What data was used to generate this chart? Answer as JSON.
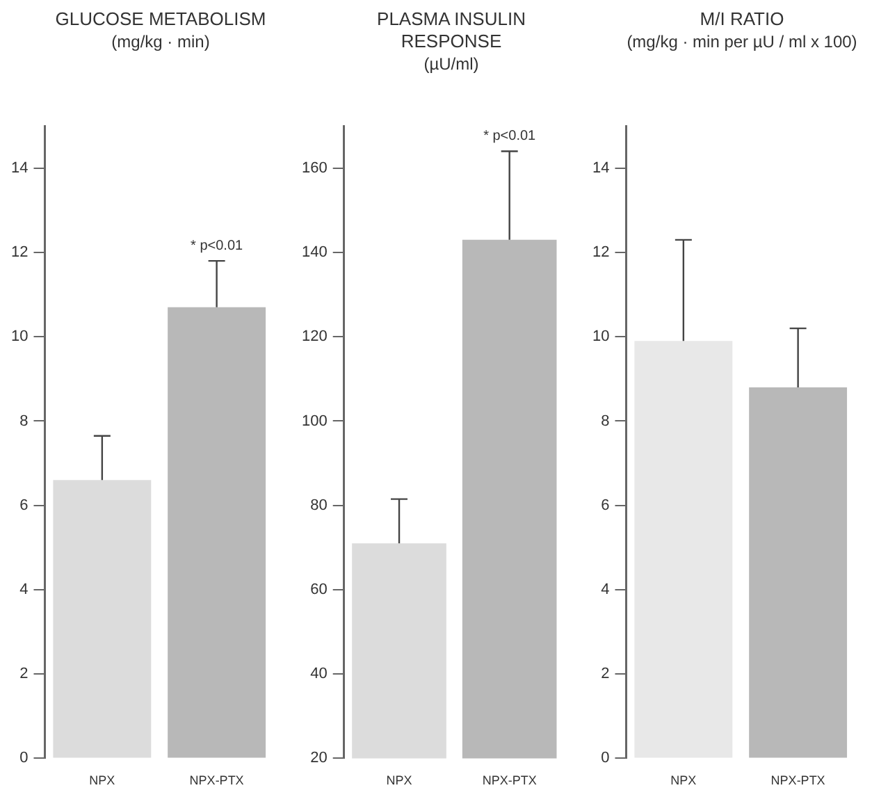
{
  "chart_data": [
    {
      "type": "bar",
      "title": "GLUCOSE METABOLISM",
      "subtitle": "(mg/kg · min)",
      "categories": [
        "NPX",
        "NPX-PTX"
      ],
      "values": [
        6.6,
        10.7
      ],
      "colors": [
        "#dcdcdc",
        "#b8b8b8"
      ],
      "errors": [
        [
          6.6,
          7.65
        ],
        [
          10.7,
          11.8
        ]
      ],
      "ylim": [
        0,
        15
      ],
      "yticks": [
        0,
        2,
        4,
        6,
        8,
        10,
        12,
        14
      ],
      "annotations": [
        "* p<0.01"
      ]
    },
    {
      "type": "bar",
      "title": "PLASMA INSULIN RESPONSE",
      "subtitle": "(µU/ml)",
      "categories": [
        "NPX",
        "NPX-PTX"
      ],
      "values": [
        71,
        143
      ],
      "colors": [
        "#dcdcdc",
        "#b8b8b8"
      ],
      "errors": [
        [
          71,
          81.5
        ],
        [
          143,
          164
        ]
      ],
      "ylim": [
        20,
        170
      ],
      "yticks": [
        20,
        40,
        60,
        80,
        100,
        120,
        140,
        160
      ],
      "annotations": [
        "* p<0.01"
      ]
    },
    {
      "type": "bar",
      "title": "M/I RATIO",
      "subtitle": "(mg/kg · min per µU / ml x 100)",
      "categories": [
        "NPX",
        "NPX-PTX"
      ],
      "values": [
        9.9,
        8.8
      ],
      "colors": [
        "#e8e8e8",
        "#b8b8b8"
      ],
      "errors": [
        [
          9.9,
          12.3
        ],
        [
          8.8,
          10.2
        ]
      ],
      "ylim": [
        0,
        15
      ],
      "yticks": [
        0,
        2,
        4,
        6,
        8,
        10,
        12,
        14
      ]
    }
  ]
}
